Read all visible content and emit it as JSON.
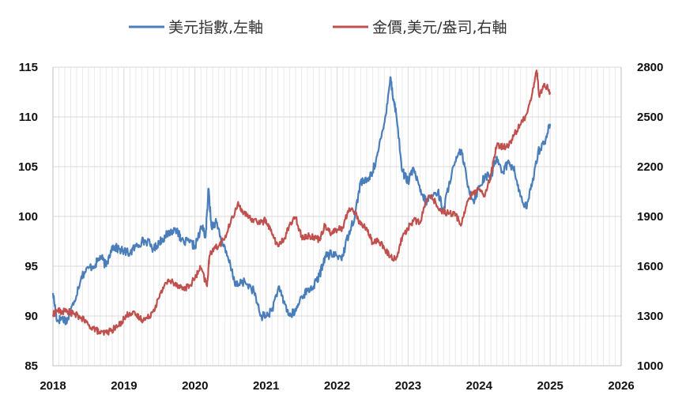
{
  "chart_data": {
    "type": "line",
    "title": "",
    "legend": {
      "placement": "top-center",
      "entries": [
        {
          "series": 0,
          "label": "美元指數,左軸"
        },
        {
          "series": 1,
          "label": "金價,美元/盎司,右軸"
        }
      ]
    },
    "x_axis": {
      "ticks": [
        "2018",
        "2019",
        "2020",
        "2021",
        "2022",
        "2023",
        "2024",
        "2025",
        "2026"
      ],
      "range": [
        2018,
        2026
      ],
      "vertical_grid": true
    },
    "y_left": {
      "ticks": [
        "85",
        "90",
        "95",
        "100",
        "105",
        "110",
        "115"
      ],
      "range": [
        85,
        115
      ],
      "horizontal_grid": true
    },
    "y_right": {
      "ticks": [
        "1000",
        "1300",
        "1600",
        "1900",
        "2200",
        "2500",
        "2800"
      ],
      "range": [
        1000,
        2800
      ]
    },
    "series": [
      {
        "name": "美元指數,左軸",
        "axis": "left",
        "color": "#4a7ebb",
        "points": [
          [
            2018.0,
            92.3
          ],
          [
            2018.06,
            89.5
          ],
          [
            2018.12,
            89.8
          ],
          [
            2018.2,
            89.5
          ],
          [
            2018.3,
            91.5
          ],
          [
            2018.4,
            94.0
          ],
          [
            2018.5,
            94.8
          ],
          [
            2018.6,
            95.2
          ],
          [
            2018.67,
            96.0
          ],
          [
            2018.75,
            95.0
          ],
          [
            2018.83,
            97.0
          ],
          [
            2018.9,
            96.8
          ],
          [
            2019.0,
            96.5
          ],
          [
            2019.08,
            96.3
          ],
          [
            2019.17,
            97.0
          ],
          [
            2019.25,
            97.5
          ],
          [
            2019.33,
            97.5
          ],
          [
            2019.42,
            96.7
          ],
          [
            2019.5,
            97.5
          ],
          [
            2019.58,
            98.0
          ],
          [
            2019.67,
            98.5
          ],
          [
            2019.75,
            98.8
          ],
          [
            2019.8,
            97.5
          ],
          [
            2019.92,
            97.4
          ],
          [
            2020.0,
            97.0
          ],
          [
            2020.1,
            99.0
          ],
          [
            2020.15,
            98.0
          ],
          [
            2020.19,
            102.8
          ],
          [
            2020.23,
            99.0
          ],
          [
            2020.3,
            99.5
          ],
          [
            2020.4,
            97.0
          ],
          [
            2020.5,
            95.0
          ],
          [
            2020.58,
            93.0
          ],
          [
            2020.7,
            93.5
          ],
          [
            2020.83,
            92.5
          ],
          [
            2020.92,
            90.0
          ],
          [
            2021.0,
            90.0
          ],
          [
            2021.08,
            90.5
          ],
          [
            2021.17,
            92.8
          ],
          [
            2021.25,
            91.5
          ],
          [
            2021.33,
            90.0
          ],
          [
            2021.42,
            90.5
          ],
          [
            2021.5,
            92.0
          ],
          [
            2021.58,
            92.5
          ],
          [
            2021.67,
            93.0
          ],
          [
            2021.75,
            94.0
          ],
          [
            2021.83,
            96.0
          ],
          [
            2021.92,
            96.2
          ],
          [
            2022.0,
            96.0
          ],
          [
            2022.08,
            96.0
          ],
          [
            2022.17,
            98.5
          ],
          [
            2022.25,
            100.0
          ],
          [
            2022.33,
            103.5
          ],
          [
            2022.42,
            103.5
          ],
          [
            2022.5,
            104.5
          ],
          [
            2022.58,
            106.5
          ],
          [
            2022.67,
            109.5
          ],
          [
            2022.75,
            114.0
          ],
          [
            2022.8,
            111.5
          ],
          [
            2022.83,
            110.5
          ],
          [
            2022.92,
            104.5
          ],
          [
            2023.0,
            103.5
          ],
          [
            2023.08,
            104.8
          ],
          [
            2023.17,
            102.5
          ],
          [
            2023.25,
            101.5
          ],
          [
            2023.33,
            102.0
          ],
          [
            2023.42,
            102.5
          ],
          [
            2023.5,
            100.5
          ],
          [
            2023.58,
            103.5
          ],
          [
            2023.67,
            105.5
          ],
          [
            2023.75,
            106.7
          ],
          [
            2023.83,
            103.5
          ],
          [
            2023.92,
            101.5
          ],
          [
            2024.0,
            103.0
          ],
          [
            2024.08,
            104.0
          ],
          [
            2024.17,
            104.0
          ],
          [
            2024.25,
            106.0
          ],
          [
            2024.33,
            104.5
          ],
          [
            2024.42,
            105.5
          ],
          [
            2024.5,
            104.5
          ],
          [
            2024.58,
            102.0
          ],
          [
            2024.67,
            100.8
          ],
          [
            2024.75,
            103.5
          ],
          [
            2024.83,
            106.5
          ],
          [
            2024.92,
            107.5
          ],
          [
            2025.0,
            109.3
          ]
        ]
      },
      {
        "name": "金價,美元/盎司,右軸",
        "axis": "right",
        "color": "#c0504d",
        "points": [
          [
            2018.0,
            1305
          ],
          [
            2018.05,
            1335
          ],
          [
            2018.12,
            1325
          ],
          [
            2018.2,
            1330
          ],
          [
            2018.3,
            1310
          ],
          [
            2018.4,
            1290
          ],
          [
            2018.5,
            1245
          ],
          [
            2018.6,
            1220
          ],
          [
            2018.67,
            1195
          ],
          [
            2018.75,
            1200
          ],
          [
            2018.83,
            1215
          ],
          [
            2018.92,
            1240
          ],
          [
            2019.0,
            1285
          ],
          [
            2019.08,
            1320
          ],
          [
            2019.17,
            1305
          ],
          [
            2019.25,
            1280
          ],
          [
            2019.33,
            1285
          ],
          [
            2019.42,
            1340
          ],
          [
            2019.5,
            1415
          ],
          [
            2019.58,
            1500
          ],
          [
            2019.67,
            1510
          ],
          [
            2019.75,
            1490
          ],
          [
            2019.83,
            1465
          ],
          [
            2019.92,
            1480
          ],
          [
            2020.0,
            1530
          ],
          [
            2020.08,
            1590
          ],
          [
            2020.17,
            1480
          ],
          [
            2020.2,
            1650
          ],
          [
            2020.25,
            1705
          ],
          [
            2020.33,
            1720
          ],
          [
            2020.42,
            1770
          ],
          [
            2020.5,
            1860
          ],
          [
            2020.6,
            1975
          ],
          [
            2020.67,
            1935
          ],
          [
            2020.75,
            1890
          ],
          [
            2020.83,
            1880
          ],
          [
            2020.92,
            1860
          ],
          [
            2021.0,
            1880
          ],
          [
            2021.08,
            1800
          ],
          [
            2021.17,
            1720
          ],
          [
            2021.25,
            1760
          ],
          [
            2021.33,
            1850
          ],
          [
            2021.42,
            1890
          ],
          [
            2021.5,
            1780
          ],
          [
            2021.58,
            1780
          ],
          [
            2021.67,
            1780
          ],
          [
            2021.75,
            1760
          ],
          [
            2021.83,
            1850
          ],
          [
            2021.92,
            1800
          ],
          [
            2022.0,
            1820
          ],
          [
            2022.08,
            1830
          ],
          [
            2022.17,
            1950
          ],
          [
            2022.25,
            1930
          ],
          [
            2022.33,
            1850
          ],
          [
            2022.42,
            1830
          ],
          [
            2022.5,
            1740
          ],
          [
            2022.58,
            1760
          ],
          [
            2022.67,
            1700
          ],
          [
            2022.75,
            1660
          ],
          [
            2022.83,
            1640
          ],
          [
            2022.92,
            1780
          ],
          [
            2023.0,
            1830
          ],
          [
            2023.08,
            1880
          ],
          [
            2023.17,
            1860
          ],
          [
            2023.25,
            1990
          ],
          [
            2023.33,
            2030
          ],
          [
            2023.42,
            1950
          ],
          [
            2023.5,
            1930
          ],
          [
            2023.58,
            1920
          ],
          [
            2023.67,
            1910
          ],
          [
            2023.75,
            1850
          ],
          [
            2023.83,
            1990
          ],
          [
            2023.92,
            2040
          ],
          [
            2024.0,
            2060
          ],
          [
            2024.08,
            2020
          ],
          [
            2024.17,
            2160
          ],
          [
            2024.25,
            2330
          ],
          [
            2024.33,
            2320
          ],
          [
            2024.42,
            2330
          ],
          [
            2024.5,
            2400
          ],
          [
            2024.58,
            2450
          ],
          [
            2024.67,
            2520
          ],
          [
            2024.75,
            2650
          ],
          [
            2024.81,
            2780
          ],
          [
            2024.85,
            2620
          ],
          [
            2024.92,
            2700
          ],
          [
            2025.0,
            2650
          ]
        ]
      }
    ]
  }
}
